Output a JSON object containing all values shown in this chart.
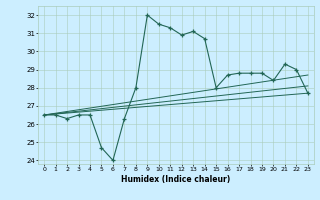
{
  "title": "",
  "xlabel": "Humidex (Indice chaleur)",
  "bg_color": "#cceeff",
  "grid_color": "#aaccbb",
  "line_color": "#226655",
  "xlim": [
    -0.5,
    23.5
  ],
  "ylim": [
    23.8,
    32.5
  ],
  "yticks": [
    24,
    25,
    26,
    27,
    28,
    29,
    30,
    31,
    32
  ],
  "xticks": [
    0,
    1,
    2,
    3,
    4,
    5,
    6,
    7,
    8,
    9,
    10,
    11,
    12,
    13,
    14,
    15,
    16,
    17,
    18,
    19,
    20,
    21,
    22,
    23
  ],
  "curve1_x": [
    0,
    1,
    2,
    3,
    4,
    5,
    6,
    7,
    8,
    9,
    10,
    11,
    12,
    13,
    14,
    15,
    16,
    17,
    18,
    19,
    20,
    21,
    22,
    23
  ],
  "curve1_y": [
    26.5,
    26.5,
    26.3,
    26.5,
    26.5,
    24.7,
    24.0,
    26.3,
    28.0,
    32.0,
    31.5,
    31.3,
    30.9,
    31.1,
    30.7,
    28.0,
    28.7,
    28.8,
    28.8,
    28.8,
    28.4,
    29.3,
    29.0,
    27.7
  ],
  "line1_x": [
    0,
    23
  ],
  "line1_y": [
    26.5,
    27.7
  ],
  "line2_x": [
    0,
    23
  ],
  "line2_y": [
    26.5,
    28.1
  ],
  "line3_x": [
    0,
    23
  ],
  "line3_y": [
    26.5,
    28.7
  ]
}
